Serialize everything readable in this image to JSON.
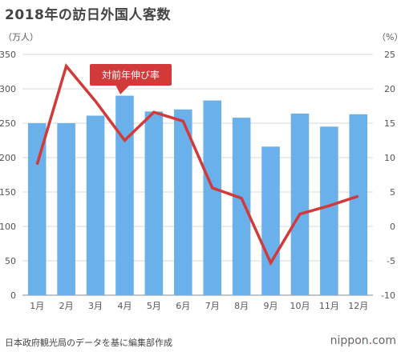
{
  "chart_data": {
    "type": "bar",
    "title": "2018年の訪日外国人客数",
    "categories": [
      "1月",
      "2月",
      "3月",
      "4月",
      "5月",
      "6月",
      "7月",
      "8月",
      "9月",
      "10月",
      "11月",
      "12月"
    ],
    "series": [
      {
        "type": "bar",
        "axis": "left",
        "values": [
          250,
          250,
          261,
          290,
          267,
          270,
          283,
          258,
          216,
          264,
          245,
          263
        ],
        "color": "#6ab0ea"
      },
      {
        "type": "line",
        "axis": "right",
        "name": "対前年伸び率",
        "values": [
          9.0,
          23.3,
          18.2,
          12.5,
          16.6,
          15.3,
          5.6,
          4.1,
          -5.3,
          1.8,
          3.0,
          4.4
        ],
        "color": "#d23a3a"
      }
    ],
    "ylabel": "（万人）",
    "y2label": "（%）",
    "ylim": [
      0,
      350
    ],
    "yticks": [
      0,
      50,
      100,
      150,
      200,
      250,
      300,
      350
    ],
    "y2lim": [
      -10,
      25
    ],
    "y2ticks": [
      -10,
      -5,
      0,
      5,
      10,
      15,
      20,
      25
    ],
    "grid": true,
    "annotation": {
      "text": "対前年伸び率",
      "color": "#d23a3a"
    },
    "source": "日本政府観光局のデータを基に編集部作成"
  },
  "brand": {
    "prefix": "nippon",
    "dot": ".",
    "suffix": "com"
  }
}
